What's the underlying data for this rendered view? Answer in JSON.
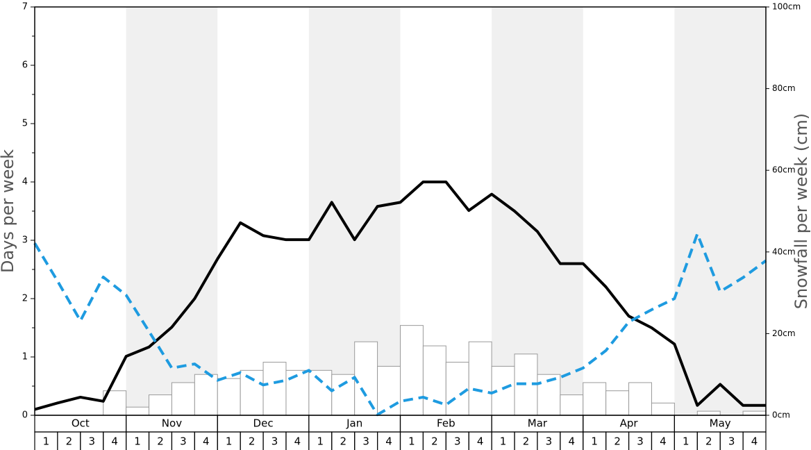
{
  "chart_data": {
    "type": "line",
    "y_label": "Days per week",
    "y2_label": "Snowfall per week (cm)",
    "months": [
      "Oct",
      "Nov",
      "Dec",
      "Jan",
      "Feb",
      "Mar",
      "Apr",
      "May"
    ],
    "categories": [
      "1",
      "2",
      "3",
      "4",
      "1",
      "2",
      "3",
      "4",
      "1",
      "2",
      "3",
      "4",
      "1",
      "2",
      "3",
      "4",
      "1",
      "2",
      "3",
      "4",
      "1",
      "2",
      "3",
      "4",
      "1",
      "2",
      "3",
      "4",
      "1",
      "2",
      "3",
      "4"
    ],
    "x": [
      0,
      1,
      2,
      3,
      4,
      5,
      6,
      7,
      8,
      9,
      10,
      11,
      12,
      13,
      14,
      15,
      16,
      17,
      18,
      19,
      20,
      21,
      22,
      23,
      24,
      25,
      26,
      27,
      28,
      29,
      30,
      31,
      32
    ],
    "xlim": [
      0,
      32
    ],
    "ylim": [
      0,
      7
    ],
    "yticks": [
      0,
      1,
      2,
      3,
      4,
      5,
      6,
      7
    ],
    "y2lim": [
      0,
      100
    ],
    "y2ticks": [
      {
        "value": 0,
        "label": "0cm"
      },
      {
        "value": 20,
        "label": "20cm"
      },
      {
        "value": 40,
        "label": "40cm"
      },
      {
        "value": 60,
        "label": "60cm"
      },
      {
        "value": 80,
        "label": "80cm"
      },
      {
        "value": 100,
        "label": "100cm"
      }
    ],
    "bars": {
      "color": "#ffffff",
      "axis": "y2",
      "values": [
        0,
        0,
        0,
        6,
        2,
        5,
        8,
        10,
        9,
        11,
        13,
        11,
        11,
        10,
        18,
        12,
        22,
        17,
        13,
        18,
        12,
        15,
        10,
        5,
        8,
        6,
        8,
        3,
        0,
        1,
        0,
        1
      ]
    },
    "series": [
      {
        "color": "#000000",
        "dashed": false,
        "values": [
          0.1,
          0.21,
          0.31,
          0.24,
          1.01,
          1.17,
          1.51,
          2.0,
          2.68,
          3.3,
          3.08,
          3.01,
          3.01,
          3.65,
          3.01,
          3.58,
          3.65,
          4.0,
          4.0,
          3.51,
          3.79,
          3.5,
          3.15,
          2.6,
          2.6,
          2.2,
          1.7,
          1.5,
          1.22,
          0.17,
          0.53,
          0.17,
          0.17
        ]
      },
      {
        "color": "#1e9be0",
        "dashed": true,
        "values": [
          2.95,
          2.3,
          1.62,
          2.37,
          2.06,
          1.44,
          0.81,
          0.88,
          0.6,
          0.73,
          0.52,
          0.6,
          0.77,
          0.42,
          0.65,
          0.01,
          0.24,
          0.31,
          0.18,
          0.46,
          0.38,
          0.54,
          0.54,
          0.65,
          0.81,
          1.11,
          1.6,
          1.81,
          2.0,
          3.11,
          2.12,
          2.36,
          2.65
        ]
      }
    ]
  }
}
